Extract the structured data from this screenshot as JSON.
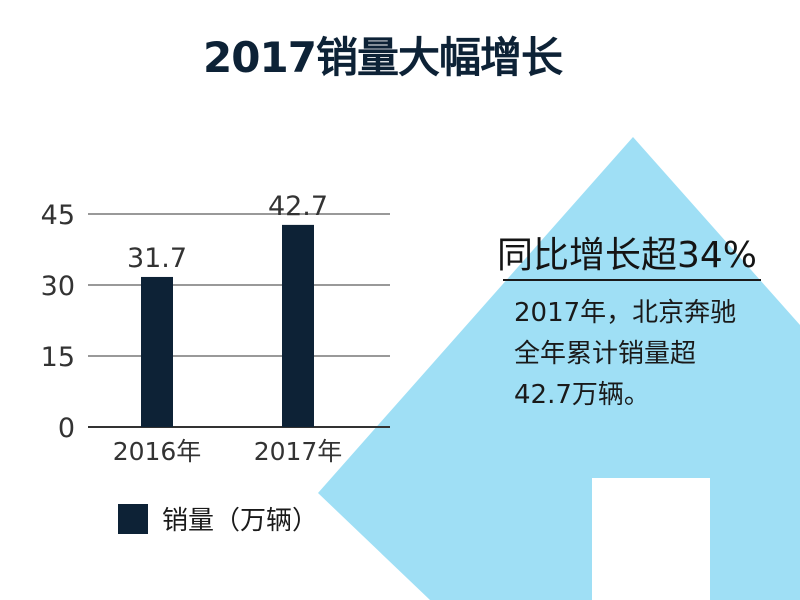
{
  "page": {
    "title": "2017销量大幅增长"
  },
  "colors": {
    "bar": "#0d2236",
    "arrow": "#9fdff5",
    "grid": "#333333"
  },
  "chart_data": {
    "type": "bar",
    "categories": [
      "2016年",
      "2017年"
    ],
    "series": [
      {
        "name": "销量（万辆）",
        "values": [
          31.7,
          42.7
        ]
      }
    ],
    "data_labels": [
      "31.7",
      "42.7"
    ],
    "yticks": [
      "0",
      "15",
      "30",
      "45"
    ],
    "ylim": [
      0,
      45
    ],
    "grid": true,
    "legend": "bottom"
  },
  "callout": {
    "headline": "同比增长超34%",
    "lines": [
      "2017年，北京奔驰",
      "全年累计销量超",
      "42.7万辆。"
    ]
  }
}
